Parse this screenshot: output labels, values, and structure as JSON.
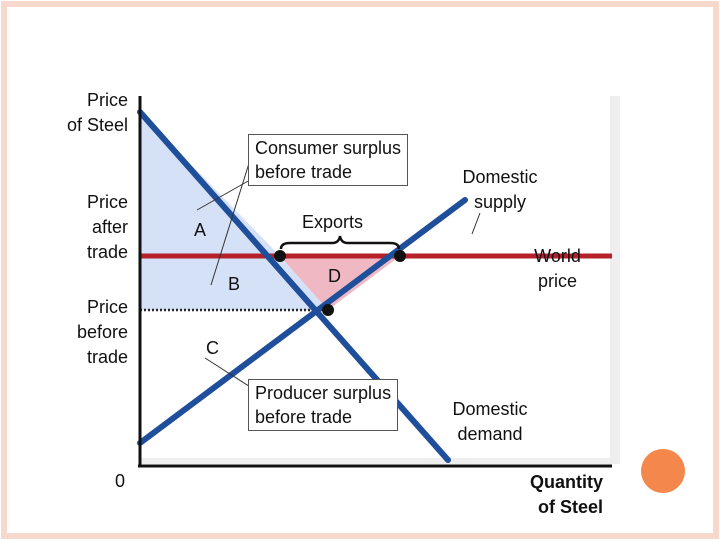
{
  "colors": {
    "slide_border": "#f6d8cc",
    "plot_background": "#eeeeee",
    "demand_line": "#1f4e9b",
    "supply_line": "#1f4e9b",
    "world_price_line": "#b5202a",
    "consumer_surplus_fill": "#d4e1f7",
    "gain_fill": "#f0b8c3",
    "decoration_circle": "#f4874b"
  },
  "axis": {
    "y_label_line1": "Price",
    "y_label_line2": "of Steel",
    "x_label_line1": "Quantity",
    "x_label_line2": "of Steel",
    "origin": "0"
  },
  "price_labels": {
    "after_1": "Price",
    "after_2": "after",
    "after_3": "trade",
    "before_1": "Price",
    "before_2": "before",
    "before_3": "trade"
  },
  "callouts": {
    "consumer_surplus_1": "Consumer surplus",
    "consumer_surplus_2": "before trade",
    "producer_surplus_1": "Producer surplus",
    "producer_surplus_2": "before trade",
    "exports": "Exports"
  },
  "areas": {
    "a": "A",
    "b": "B",
    "c": "C",
    "d": "D"
  },
  "curves": {
    "supply_1": "Domestic",
    "supply_2": "supply",
    "demand_1": "Domestic",
    "demand_2": "demand",
    "world_1": "World",
    "world_2": "price"
  }
}
